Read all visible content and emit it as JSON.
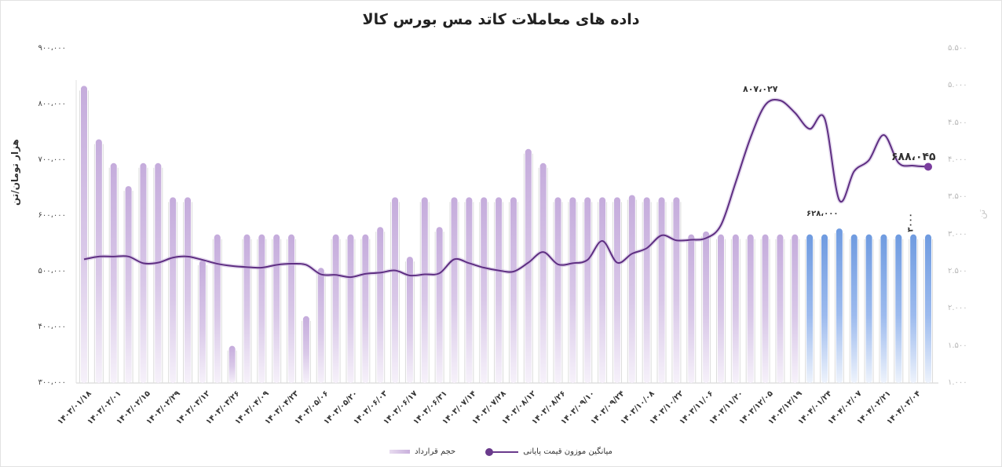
{
  "title": "داده های معاملات کاتد مس بورس کالا",
  "left_axis": {
    "label": "هزار تومان/تن",
    "ticks": [
      "۹۰۰،۰۰۰",
      "۸۰۰،۰۰۰",
      "۷۰۰،۰۰۰",
      "۶۰۰،۰۰۰",
      "۵۰۰،۰۰۰",
      "۴۰۰،۰۰۰",
      "۳۰۰،۰۰۰"
    ]
  },
  "right_axis": {
    "label": "تن",
    "ticks": [
      "۵.۵۰۰",
      "۵.۰۰۰",
      "۴.۵۰۰",
      "۴.۰۰۰",
      "۳.۵۰۰",
      "۳.۰۰۰",
      "۲.۵۰۰",
      "۲.۰۰۰",
      "۱.۵۰۰",
      "۱.۰۰۰"
    ]
  },
  "x_labels": [
    "۱۴۰۳/۰۱/۱۸",
    "۱۴۰۳/۰۲/۰۱",
    "۱۴۰۳/۰۲/۱۵",
    "۱۴۰۳/۰۲/۲۹",
    "۱۴۰۳/۰۳/۱۲",
    "۱۴۰۳/۰۳/۲۶",
    "۱۴۰۳/۰۴/۰۹",
    "۱۴۰۳/۰۴/۲۳",
    "۱۴۰۳/۰۵/۰۶",
    "۱۴۰۳/۰۵/۲۰",
    "۱۴۰۳/۰۶/۰۳",
    "۱۴۰۳/۰۶/۱۷",
    "۱۴۰۳/۰۶/۳۱",
    "۱۴۰۳/۰۷/۱۴",
    "۱۴۰۳/۰۷/۲۸",
    "۱۴۰۳/۰۸/۱۲",
    "۱۴۰۳/۰۸/۲۶",
    "۱۴۰۳/۰۹/۱۰",
    "۱۴۰۳/۰۹/۲۴",
    "۱۴۰۳/۱۰/۰۸",
    "۱۴۰۳/۱۰/۲۲",
    "۱۴۰۳/۱۱/۰۶",
    "۱۴۰۳/۱۱/۲۰",
    "۱۴۰۳/۱۲/۰۵",
    "۱۴۰۳/۱۲/۱۹",
    "۱۴۰۴/۰۱/۲۴",
    "۱۴۰۴/۰۲/۰۷",
    "۱۴۰۴/۰۲/۲۱",
    "۱۴۰۴/۰۳/۰۴"
  ],
  "annotations": {
    "peak": "۸۰۷،۰۲۷",
    "trough": "۶۲۸،۰۰۰",
    "last": "۶۸۸،۰۴۵",
    "volume": "۳۰۰۰"
  },
  "legend": {
    "line": "میانگین موزون قیمت پایانی",
    "bar": "حجم قرارداد"
  },
  "colors": {
    "bar_purple": "#c5acdc",
    "bar_blue": "#6f9be0",
    "line": "#5e2e82"
  },
  "chart_data": {
    "type": "bar+line",
    "title": "داده های معاملات کاتد مس بورس کالا",
    "xlabel": "",
    "ylabel_left": "هزار تومان/تن",
    "ylabel_right": "تن",
    "ylim_left": [
      300000,
      900000
    ],
    "ylim_right": [
      1000,
      5500
    ],
    "legend_position": "bottom",
    "grid": false,
    "series": [
      {
        "name": "حجم قرارداد",
        "type": "bar",
        "axis": "right",
        "values": [
          5000,
          4280,
          3960,
          3650,
          3960,
          3960,
          3500,
          3500,
          2650,
          3000,
          1500,
          3000,
          3000,
          3000,
          3000,
          1900,
          2550,
          3000,
          3000,
          3000,
          3100,
          3500,
          2700,
          3500,
          3100,
          3500,
          3500,
          3500,
          3500,
          3500,
          4150,
          3960,
          3500,
          3500,
          3500,
          3500,
          3500,
          3530,
          3500,
          3500,
          3500,
          3000,
          3040,
          3000,
          3000,
          3000,
          3000,
          3000,
          3000,
          3000,
          3000,
          3080,
          3000,
          3000,
          3000,
          3000,
          3000,
          3000
        ]
      },
      {
        "name": "میانگین موزون قیمت پایانی",
        "type": "line",
        "axis": "left",
        "values": [
          522000,
          527000,
          527000,
          527000,
          515000,
          516000,
          525000,
          527000,
          521000,
          514000,
          510000,
          508000,
          507000,
          512000,
          514000,
          512000,
          495000,
          494000,
          490000,
          496000,
          498000,
          502000,
          493000,
          495000,
          497000,
          522000,
          515000,
          507000,
          502000,
          500000,
          516000,
          535000,
          513000,
          515000,
          521000,
          555000,
          516000,
          532000,
          542000,
          565000,
          556000,
          557000,
          560000,
          583000,
          660000,
          740000,
          799000,
          807027,
          785000,
          756000,
          775000,
          628000,
          680000,
          700000,
          745000,
          695000,
          690000,
          688045
        ]
      }
    ]
  }
}
